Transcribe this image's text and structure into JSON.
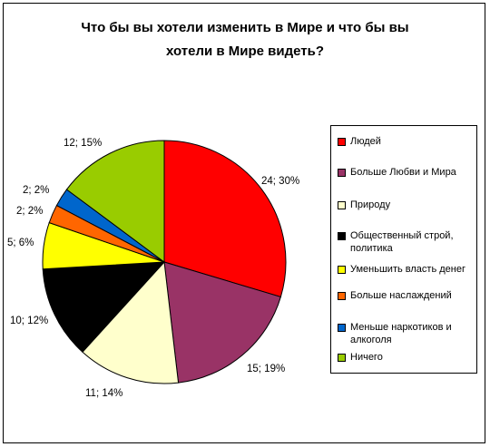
{
  "title_lines": [
    "Что бы вы хотели изменить в Мире и что бы вы",
    "хотели в Мире видеть?"
  ],
  "chart_data": {
    "type": "pie",
    "title": "Что бы вы хотели изменить в Мире и что бы вы хотели в Мире видеть?",
    "start": "12 o'clock",
    "direction": "clockwise",
    "legend_position": "right",
    "slices": [
      {
        "name": "Людей",
        "value": 24,
        "percent": 30,
        "label": "24; 30%",
        "color": "#ff0000"
      },
      {
        "name": "Больше Любви и Мира",
        "value": 15,
        "percent": 19,
        "label": "15; 19%",
        "color": "#993366"
      },
      {
        "name": "Природу",
        "value": 11,
        "percent": 14,
        "label": "11; 14%",
        "color": "#ffffcc"
      },
      {
        "name": "Общественный строй, политика",
        "value": 10,
        "percent": 12,
        "label": "10; 12%",
        "color": "#000000"
      },
      {
        "name": "Уменьшить власть денег",
        "value": 5,
        "percent": 6,
        "label": "5; 6%",
        "color": "#ffff00"
      },
      {
        "name": "Больше наслаждений",
        "value": 2,
        "percent": 2,
        "label": "2; 2%",
        "color": "#ff6600"
      },
      {
        "name": "Меньше наркотиков и алкоголя",
        "value": 2,
        "percent": 2,
        "label": "2; 2%",
        "color": "#0066cc"
      },
      {
        "name": "Ничего",
        "value": 12,
        "percent": 15,
        "label": "12; 15%",
        "color": "#99cc00"
      }
    ]
  }
}
